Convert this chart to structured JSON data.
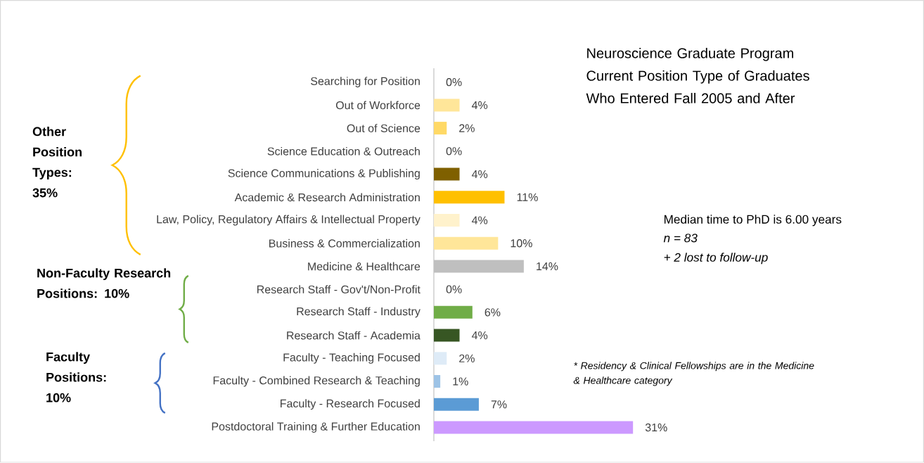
{
  "chart_data": {
    "type": "bar",
    "orientation": "horizontal",
    "title": "Neuroscience Graduate Program Current Position Type of Graduates Who Entered Fall 2005 and After",
    "categories": [
      "Searching for Position",
      "Out of Workforce",
      "Out of Science",
      "Science Education & Outreach",
      "Science Communications & Publishing",
      "Academic & Research Administration",
      "Law, Policy, Regulatory Affairs & Intellectual Property",
      "Business & Commercialization",
      "Medicine & Healthcare",
      "Research Staff - Gov't/Non-Profit",
      "Research Staff - Industry",
      "Research Staff - Academia",
      "Faculty - Teaching Focused",
      "Faculty - Combined Research & Teaching",
      "Faculty - Research Focused",
      "Postdoctoral Training & Further Education"
    ],
    "values": [
      0,
      4,
      2,
      0,
      4,
      11,
      4,
      10,
      14,
      0,
      6,
      4,
      2,
      1,
      7,
      31
    ],
    "value_labels": [
      "0%",
      "4%",
      "2%",
      "0%",
      "4%",
      "11%",
      "4%",
      "10%",
      "14%",
      "0%",
      "6%",
      "4%",
      "2%",
      "1%",
      "7%",
      "31%"
    ],
    "colors": [
      "#ffe699",
      "#ffe699",
      "#ffd966",
      "#ffe699",
      "#7f6000",
      "#ffc000",
      "#fff2cc",
      "#ffe699",
      "#bfbfbf",
      "#a9d18e",
      "#70ad47",
      "#375623",
      "#deebf7",
      "#9dc3e6",
      "#5b9bd5",
      "#cc99ff"
    ],
    "annotations": [
      "Other Position Types: 35%",
      "Non-Faculty Research Positions: 10%",
      "Faculty Positions: 10%",
      "Median time to PhD is 6.00 years",
      "*n = 83*",
      "*+ 2 lost to follow-up*",
      "* Residency & Clinical Fellowships are in the Medicine & Healthcare category"
    ]
  }
}
